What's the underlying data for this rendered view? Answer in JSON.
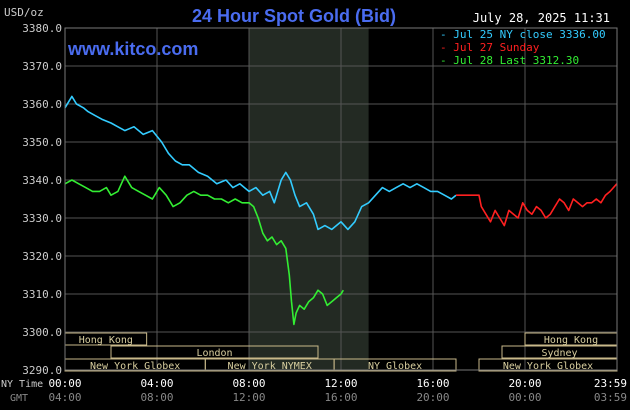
{
  "header": {
    "unit": "USD/oz",
    "title": "24 Hour Spot Gold (Bid)",
    "timestamp": "July 28, 2025 11:31",
    "watermark": "www.kitco.com"
  },
  "legend": [
    {
      "label": "Jul 25 NY close 3336.00",
      "color": "#33ccff"
    },
    {
      "label": "Jul 27 Sunday",
      "color": "#ff2020"
    },
    {
      "label": "Jul 28 Last 3312.30",
      "color": "#33ee33"
    }
  ],
  "axes": {
    "y_ticks": [
      "3380.0",
      "3370.0",
      "3360.0",
      "3350.0",
      "3340.0",
      "3330.0",
      "3320.0",
      "3310.0",
      "3300.0",
      "3290.0"
    ],
    "row_label_ny": "NY Time",
    "row_label_gmt": "GMT",
    "ny_ticks": [
      "00:00",
      "04:00",
      "08:00",
      "12:00",
      "16:00",
      "20:00",
      "23:59"
    ],
    "gmt_ticks": [
      "04:00",
      "08:00",
      "12:00",
      "16:00",
      "20:00",
      "00:00",
      "03:59"
    ]
  },
  "sessions": [
    {
      "label": "Hong Kong",
      "row": 0,
      "start": 0.0,
      "end": 3.55
    },
    {
      "label": "London",
      "row": 1,
      "start": 2.0,
      "end": 11.0
    },
    {
      "label": "New York Globex",
      "row": 2,
      "start": 0.0,
      "end": 6.1
    },
    {
      "label": "New York NYMEX",
      "row": 2,
      "start": 6.1,
      "end": 11.7
    },
    {
      "label": "NY Globex",
      "row": 2,
      "start": 11.7,
      "end": 17.0
    },
    {
      "label": "Hong Kong",
      "row": 0,
      "start": 20.0,
      "end": 24.0
    },
    {
      "label": "Sydney",
      "row": 1,
      "start": 19.0,
      "end": 24.0
    },
    {
      "label": "New York Globex",
      "row": 2,
      "start": 18.0,
      "end": 24.0
    }
  ],
  "chart_data": {
    "type": "line",
    "title": "24 Hour Spot Gold (Bid)",
    "ylabel": "USD/oz",
    "xlabel": "NY Time",
    "ylim": [
      3290,
      3380
    ],
    "xlim": [
      0,
      24
    ],
    "grid": true,
    "highlight_range": [
      8,
      13.2
    ],
    "series": [
      {
        "name": "Jul 25 NY close 3336.00",
        "color": "#33ccff",
        "x": [
          0,
          0.3,
          0.5,
          0.8,
          1.0,
          1.3,
          1.6,
          2.0,
          2.3,
          2.6,
          3.0,
          3.4,
          3.8,
          4.2,
          4.5,
          4.8,
          5.1,
          5.4,
          5.8,
          6.2,
          6.6,
          7.0,
          7.3,
          7.6,
          8.0,
          8.3,
          8.6,
          8.9,
          9.1,
          9.4,
          9.6,
          9.8,
          10.0,
          10.2,
          10.5,
          10.8,
          11.0,
          11.3,
          11.6,
          12.0,
          12.3,
          12.6,
          12.9,
          13.2,
          13.5,
          13.8,
          14.1,
          14.4,
          14.7,
          15.0,
          15.3,
          15.6,
          15.9,
          16.2,
          16.5,
          16.8,
          17.0
        ],
        "values": [
          3359,
          3362,
          3360,
          3359,
          3358,
          3357,
          3356,
          3355,
          3354,
          3353,
          3354,
          3352,
          3353,
          3350,
          3347,
          3345,
          3344,
          3344,
          3342,
          3341,
          3339,
          3340,
          3338,
          3339,
          3337,
          3338,
          3336,
          3337,
          3334,
          3340,
          3342,
          3340,
          3336,
          3333,
          3334,
          3331,
          3327,
          3328,
          3327,
          3329,
          3327,
          3329,
          3333,
          3334,
          3336,
          3338,
          3337,
          3338,
          3339,
          3338,
          3339,
          3338,
          3337,
          3337,
          3336,
          3335,
          3336
        ]
      },
      {
        "name": "Jul 27 Sunday",
        "color": "#ff2020",
        "x": [
          17.0,
          18.0,
          18.1,
          18.3,
          18.5,
          18.7,
          18.9,
          19.1,
          19.3,
          19.5,
          19.7,
          19.9,
          20.1,
          20.3,
          20.5,
          20.7,
          20.9,
          21.1,
          21.3,
          21.5,
          21.7,
          21.9,
          22.1,
          22.3,
          22.5,
          22.7,
          22.9,
          23.1,
          23.3,
          23.5,
          23.7,
          23.99
        ],
        "values": [
          3336,
          3336,
          3333,
          3331,
          3329,
          3332,
          3330,
          3328,
          3332,
          3331,
          3330,
          3334,
          3332,
          3331,
          3333,
          3332,
          3330,
          3331,
          3333,
          3335,
          3334,
          3332,
          3335,
          3334,
          3333,
          3334,
          3334,
          3335,
          3334,
          3336,
          3337,
          3339
        ]
      },
      {
        "name": "Jul 28 Last 3312.30",
        "color": "#33ee33",
        "x": [
          0,
          0.3,
          0.6,
          0.9,
          1.2,
          1.5,
          1.8,
          2.0,
          2.3,
          2.6,
          2.9,
          3.2,
          3.5,
          3.8,
          4.1,
          4.4,
          4.7,
          5.0,
          5.3,
          5.6,
          5.9,
          6.2,
          6.5,
          6.8,
          7.1,
          7.4,
          7.7,
          8.0,
          8.2,
          8.4,
          8.6,
          8.8,
          9.0,
          9.2,
          9.4,
          9.6,
          9.75,
          9.85,
          9.95,
          10.05,
          10.2,
          10.4,
          10.6,
          10.8,
          11.0,
          11.2,
          11.4,
          11.6,
          11.8,
          12.0,
          12.1
        ],
        "values": [
          3339,
          3340,
          3339,
          3338,
          3337,
          3337,
          3338,
          3336,
          3337,
          3341,
          3338,
          3337,
          3336,
          3335,
          3338,
          3336,
          3333,
          3334,
          3336,
          3337,
          3336,
          3336,
          3335,
          3335,
          3334,
          3335,
          3334,
          3334,
          3333,
          3330,
          3326,
          3324,
          3325,
          3323,
          3324,
          3322,
          3315,
          3308,
          3302,
          3305,
          3307,
          3306,
          3308,
          3309,
          3311,
          3310,
          3307,
          3308,
          3309,
          3310,
          3311
        ]
      }
    ]
  }
}
